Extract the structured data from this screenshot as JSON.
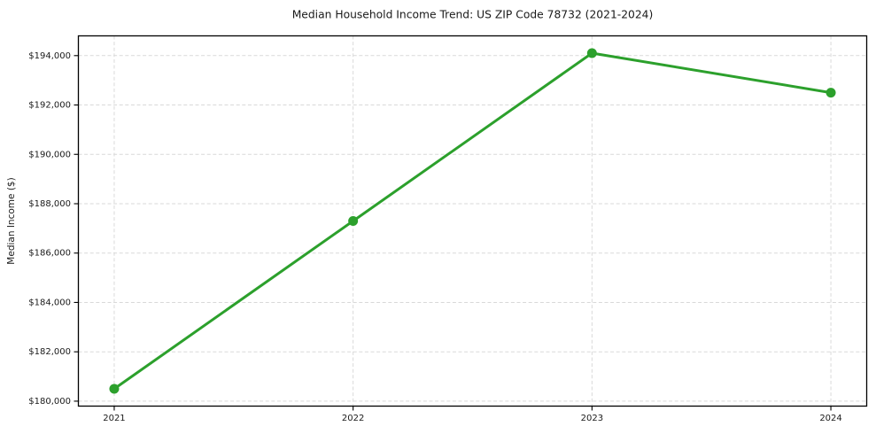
{
  "chart_data": {
    "type": "line",
    "title": "Median Household Income Trend: US ZIP Code 78732 (2021-2024)",
    "xlabel": "",
    "ylabel": "Median Income ($)",
    "x": [
      2021,
      2022,
      2023,
      2024
    ],
    "x_tick_labels": [
      "2021",
      "2022",
      "2023",
      "2024"
    ],
    "y_ticks": [
      180000,
      182000,
      184000,
      186000,
      188000,
      190000,
      192000,
      194000
    ],
    "y_tick_labels": [
      "$180,000",
      "$182,000",
      "$184,000",
      "$186,000",
      "$188,000",
      "$190,000",
      "$192,000",
      "$194,000"
    ],
    "series": [
      {
        "name": "median-household-income",
        "values": [
          180500,
          187300,
          194100,
          192500
        ]
      }
    ],
    "xlim": [
      2020.85,
      2024.15
    ],
    "ylim": [
      179800,
      194800
    ],
    "grid": true,
    "grid_style": "dashed",
    "legend": false,
    "colors": {
      "line": "#2ca02c",
      "marker": "#2ca02c",
      "grid": "#d9d9d9",
      "axis": "#000000",
      "text": "#1a1a1a",
      "background": "#ffffff"
    }
  }
}
